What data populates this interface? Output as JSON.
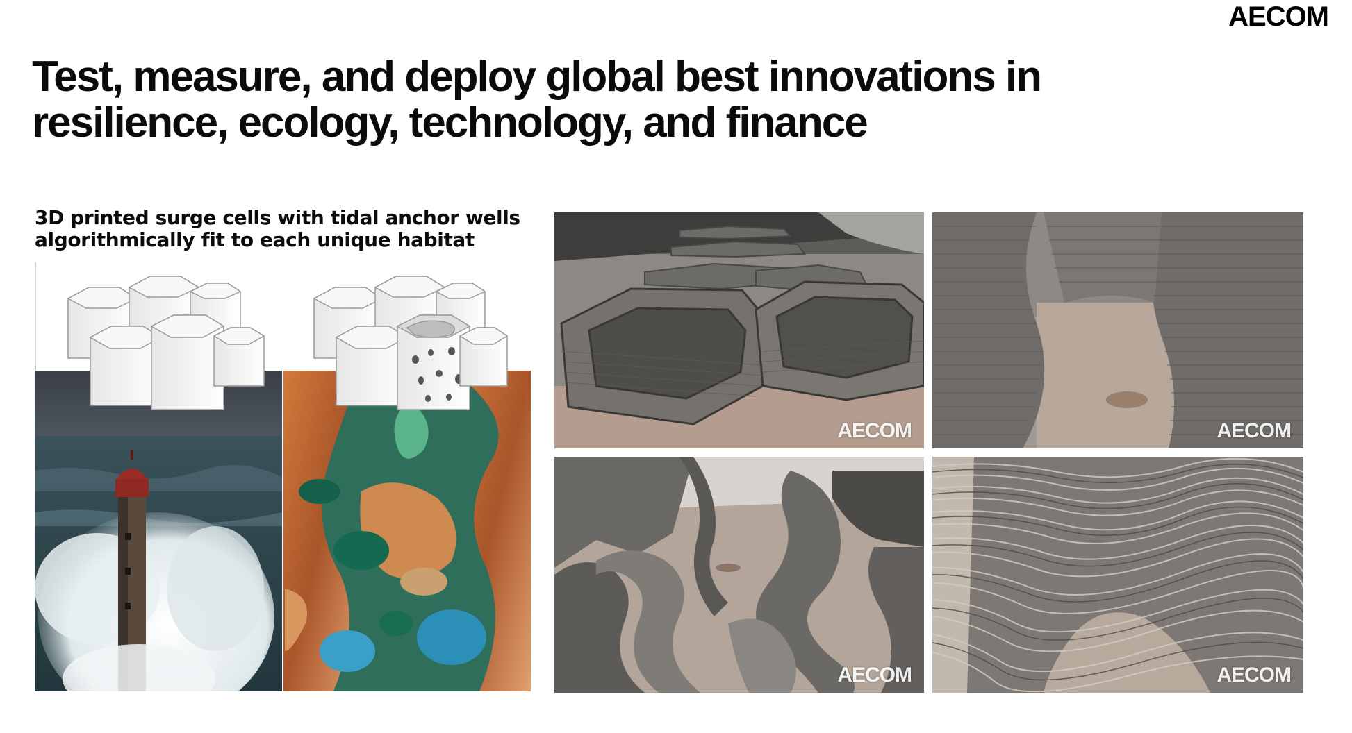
{
  "slide": {
    "brand_logo": "AECOM",
    "title": "Test, measure, and deploy global best innovations in resilience, ecology, technology, and finance",
    "caption": "3D printed surge cells with tidal anchor wells algorithmically fit to each unique habitat"
  },
  "photos": [
    {
      "watermark": "AECOM"
    },
    {
      "watermark": "AECOM"
    },
    {
      "watermark": "AECOM"
    },
    {
      "watermark": "AECOM"
    }
  ],
  "colors": {
    "text": "#0b0b0b",
    "background": "#ffffff",
    "concrete": "#6f6d69",
    "sea": "#2f4a52",
    "rock_orange": "#c86a33",
    "pool_green": "#1d7a5a"
  }
}
